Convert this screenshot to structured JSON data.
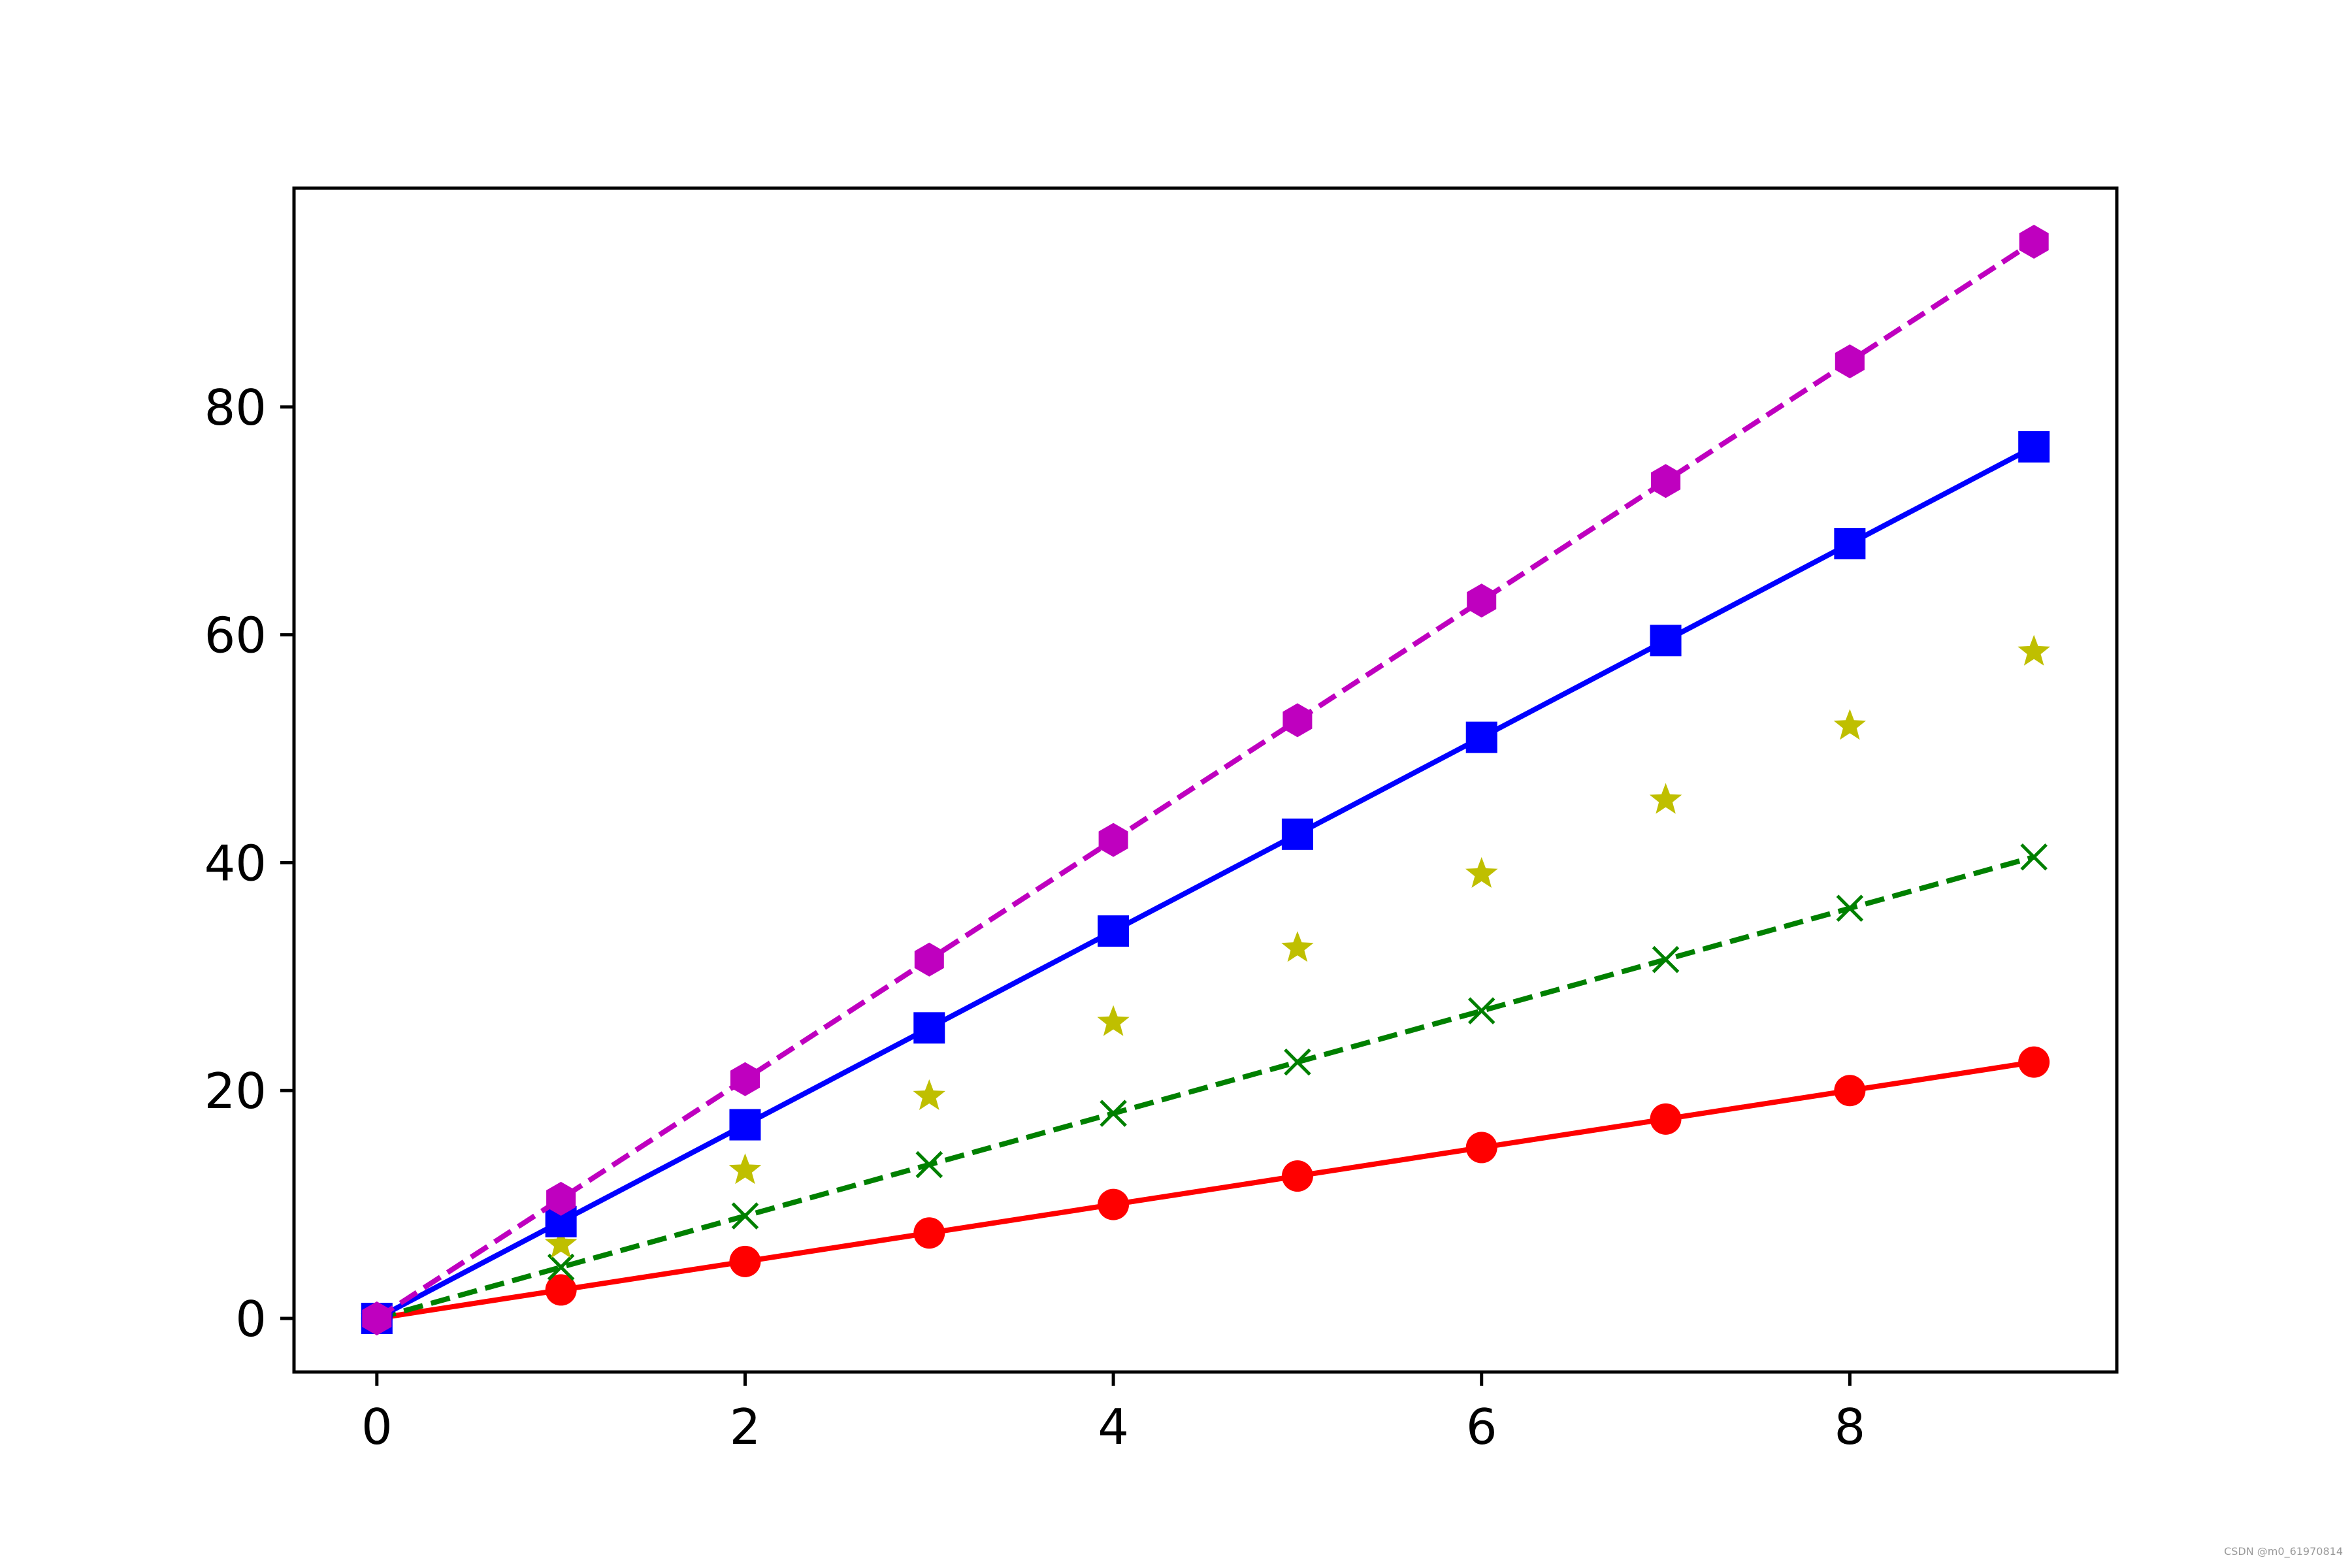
{
  "chart_data": {
    "type": "line",
    "title": "",
    "xlabel": "",
    "ylabel": "",
    "xlim": [
      -0.45,
      9.45
    ],
    "ylim": [
      -4.7,
      99.2
    ],
    "x_ticks": [
      0,
      2,
      4,
      6,
      8
    ],
    "y_ticks": [
      0,
      20,
      40,
      60,
      80
    ],
    "grid": false,
    "legend": "none",
    "x": [
      0,
      1,
      2,
      3,
      4,
      5,
      6,
      7,
      8,
      9
    ],
    "series": [
      {
        "color": "#ff0000",
        "line_style": "solid",
        "marker": "circle",
        "values": [
          0,
          2.5,
          5,
          7.5,
          10,
          12.5,
          15,
          17.5,
          20,
          22.5
        ]
      },
      {
        "color": "#008000",
        "line_style": "dashed",
        "marker": "x",
        "values": [
          0,
          4.5,
          9,
          13.5,
          18,
          22.5,
          27,
          31.5,
          36,
          40.5
        ]
      },
      {
        "color": "#bfbf00",
        "line_style": "none",
        "marker": "star",
        "values": [
          0,
          6.5,
          13,
          19.5,
          26,
          32.5,
          39,
          45.5,
          52,
          58.5
        ]
      },
      {
        "color": "#0000ff",
        "line_style": "solid",
        "marker": "square",
        "values": [
          0,
          8.5,
          17,
          25.5,
          34,
          42.5,
          51,
          59.5,
          68,
          76.5
        ]
      },
      {
        "color": "#bf00bf",
        "line_style": "dashed",
        "marker": "hexagon",
        "values": [
          0,
          10.5,
          21,
          31.5,
          42,
          52.5,
          63,
          73.5,
          84,
          94.5
        ]
      }
    ]
  },
  "watermark": "CSDN @m0_61970814"
}
